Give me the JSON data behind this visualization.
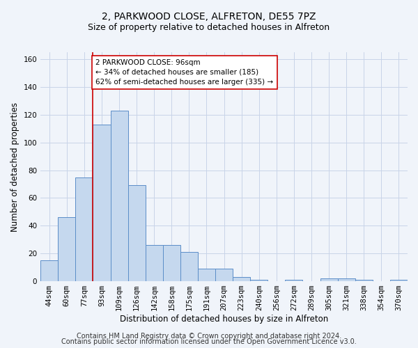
{
  "title1": "2, PARKWOOD CLOSE, ALFRETON, DE55 7PZ",
  "title2": "Size of property relative to detached houses in Alfreton",
  "xlabel": "Distribution of detached houses by size in Alfreton",
  "ylabel": "Number of detached properties",
  "categories": [
    "44sqm",
    "60sqm",
    "77sqm",
    "93sqm",
    "109sqm",
    "126sqm",
    "142sqm",
    "158sqm",
    "175sqm",
    "191sqm",
    "207sqm",
    "223sqm",
    "240sqm",
    "256sqm",
    "272sqm",
    "289sqm",
    "305sqm",
    "321sqm",
    "338sqm",
    "354sqm",
    "370sqm"
  ],
  "values": [
    15,
    46,
    75,
    113,
    123,
    69,
    26,
    26,
    21,
    9,
    9,
    3,
    1,
    0,
    1,
    0,
    2,
    2,
    1,
    0,
    1
  ],
  "bar_color": "#c5d8ee",
  "bar_edge_color": "#5b8dc8",
  "vline_bin_index": 3,
  "annotation_text": "2 PARKWOOD CLOSE: 96sqm\n← 34% of detached houses are smaller (185)\n62% of semi-detached houses are larger (335) →",
  "annotation_box_color": "#ffffff",
  "annotation_box_edge": "#cc0000",
  "vline_color": "#cc0000",
  "ylim": [
    0,
    165
  ],
  "yticks": [
    0,
    20,
    40,
    60,
    80,
    100,
    120,
    140,
    160
  ],
  "footer1": "Contains HM Land Registry data © Crown copyright and database right 2024.",
  "footer2": "Contains public sector information licensed under the Open Government Licence v3.0.",
  "title1_fontsize": 10,
  "title2_fontsize": 9,
  "axis_label_fontsize": 8.5,
  "tick_fontsize": 7.5,
  "annotation_fontsize": 7.5,
  "footer_fontsize": 7,
  "background_color": "#f0f4fa",
  "grid_color": "#c8d4e8"
}
